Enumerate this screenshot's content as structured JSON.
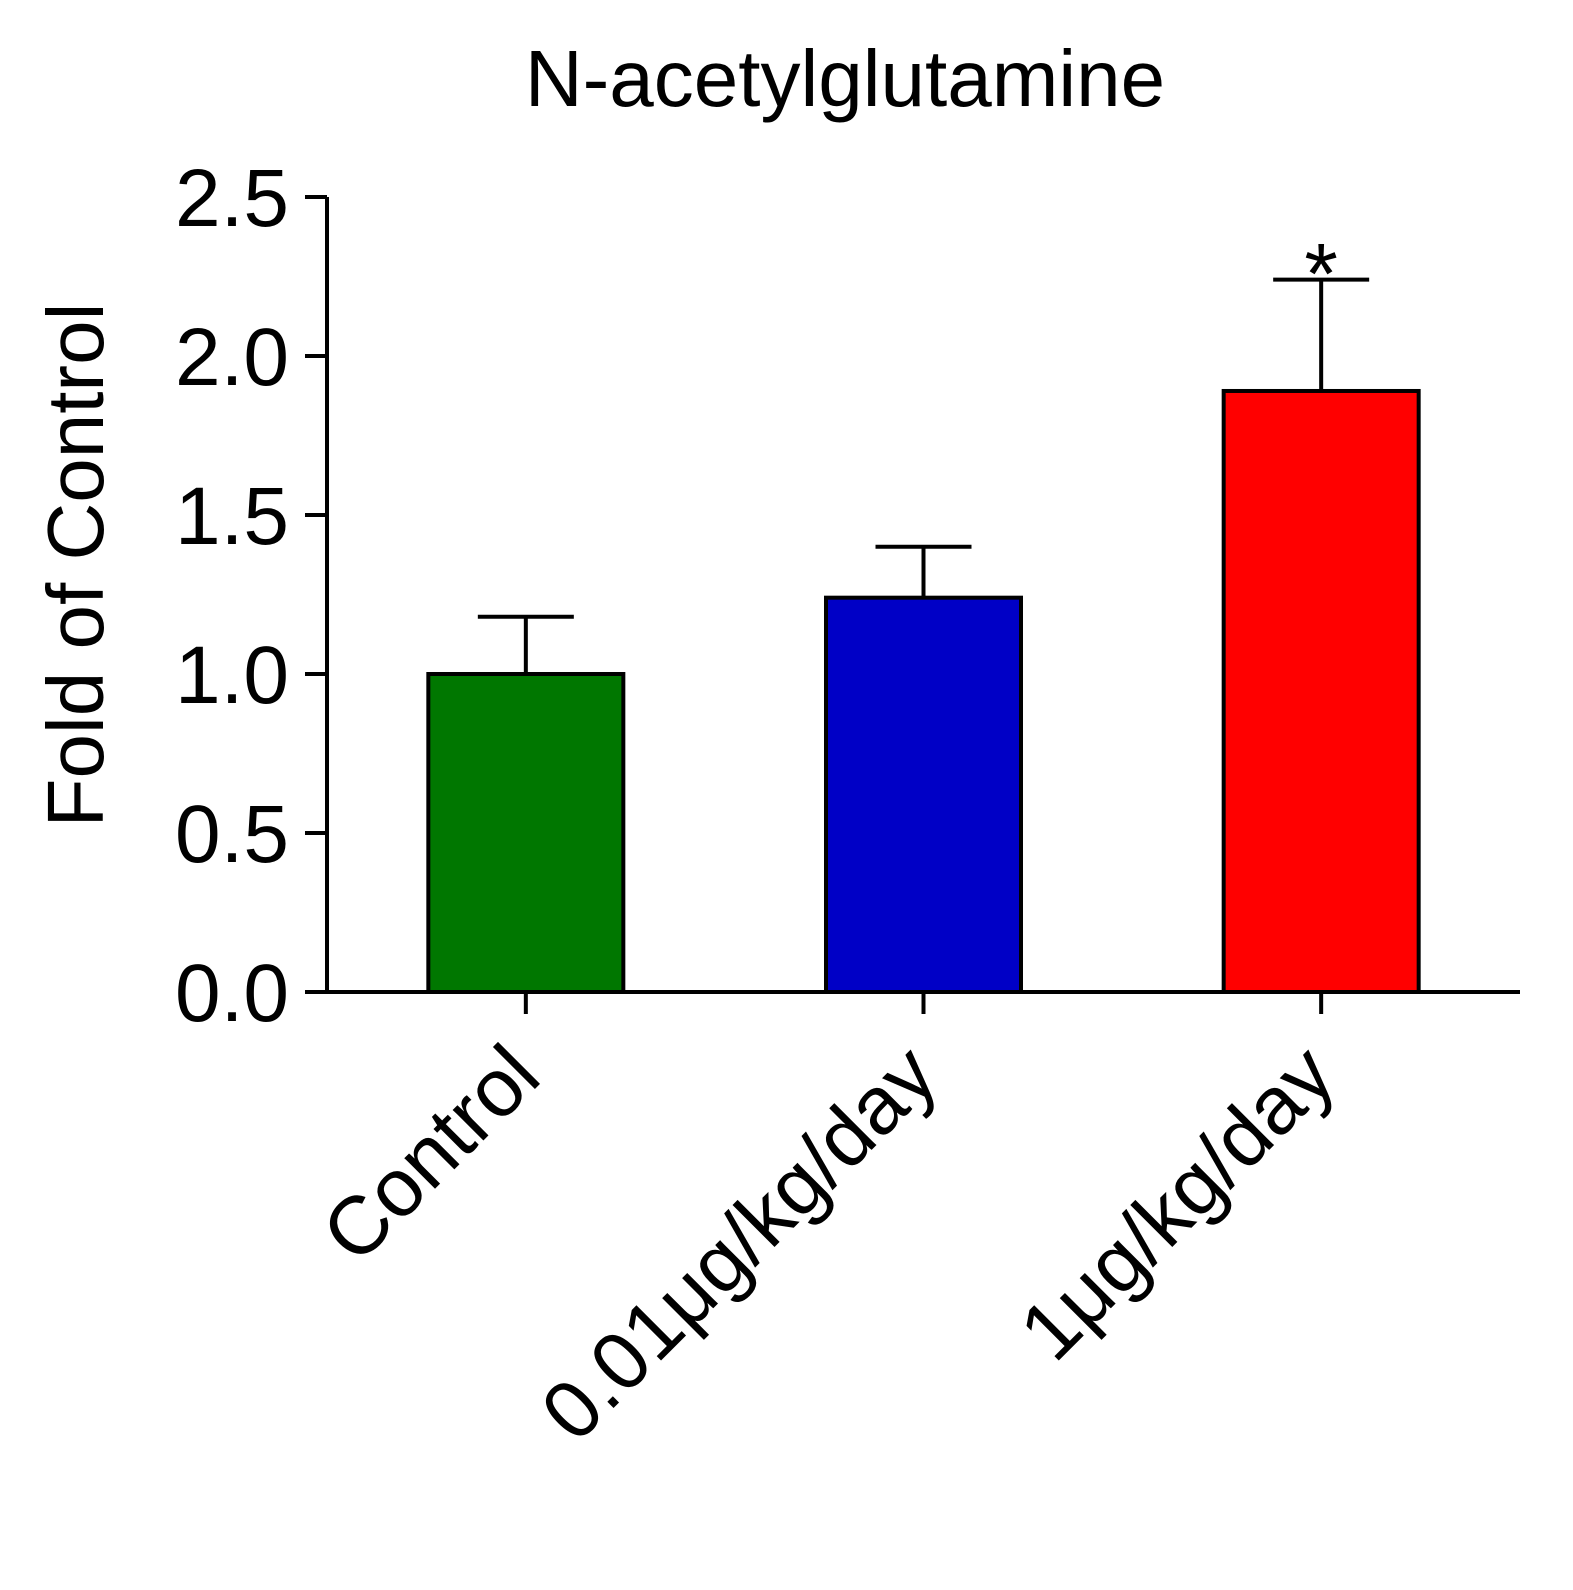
{
  "chart_data": {
    "type": "bar",
    "title": "N-acetylglutamine",
    "ylabel": "Fold of Control",
    "xlabel": "",
    "categories": [
      "Control",
      "0.01μg/kg/day",
      "1μg/kg/day"
    ],
    "values": [
      1.0,
      1.24,
      1.89
    ],
    "error_upper": [
      0.18,
      0.16,
      0.35
    ],
    "colors": [
      "#007700",
      "#0000c6",
      "#ff0000"
    ],
    "annotations": [
      "",
      "",
      "*"
    ],
    "ylim": [
      0,
      2.5
    ],
    "yticks": [
      "0.0",
      "0.5",
      "1.0",
      "1.5",
      "2.0",
      "2.5"
    ],
    "grid": false,
    "legend": "none"
  }
}
